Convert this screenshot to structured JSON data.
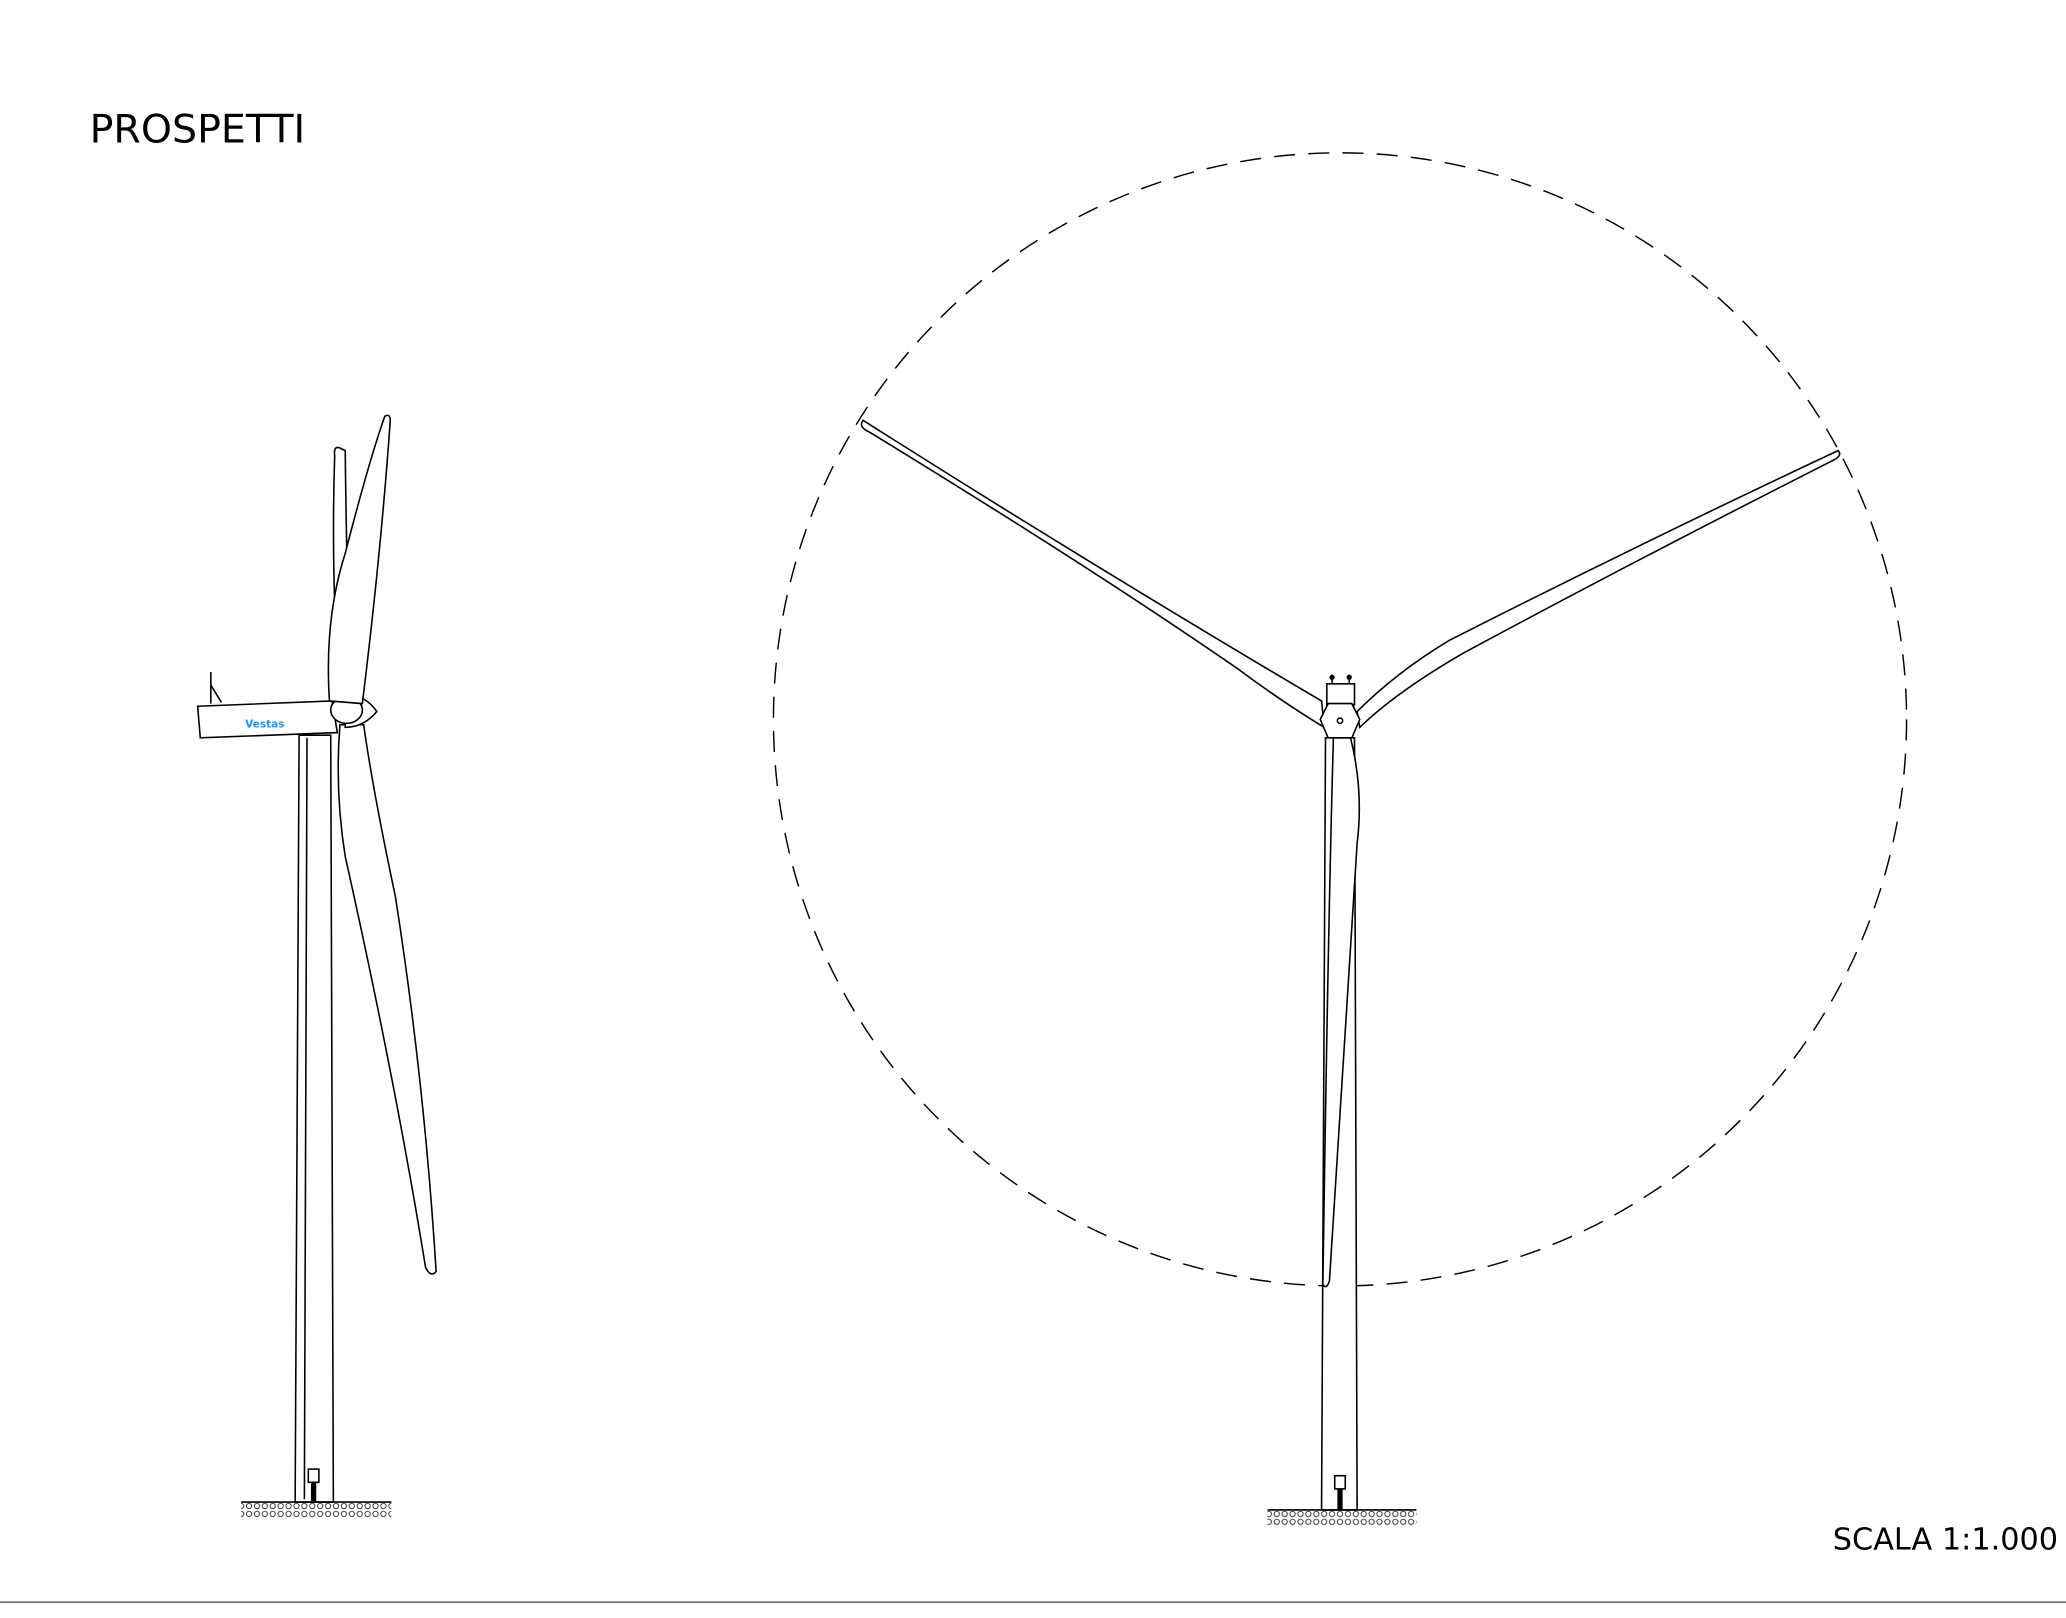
{
  "header": {
    "title": "PROSPETTI"
  },
  "nacelle": {
    "logo_text": "Vestas"
  },
  "footer": {
    "scale": "SCALA 1:1.000"
  }
}
